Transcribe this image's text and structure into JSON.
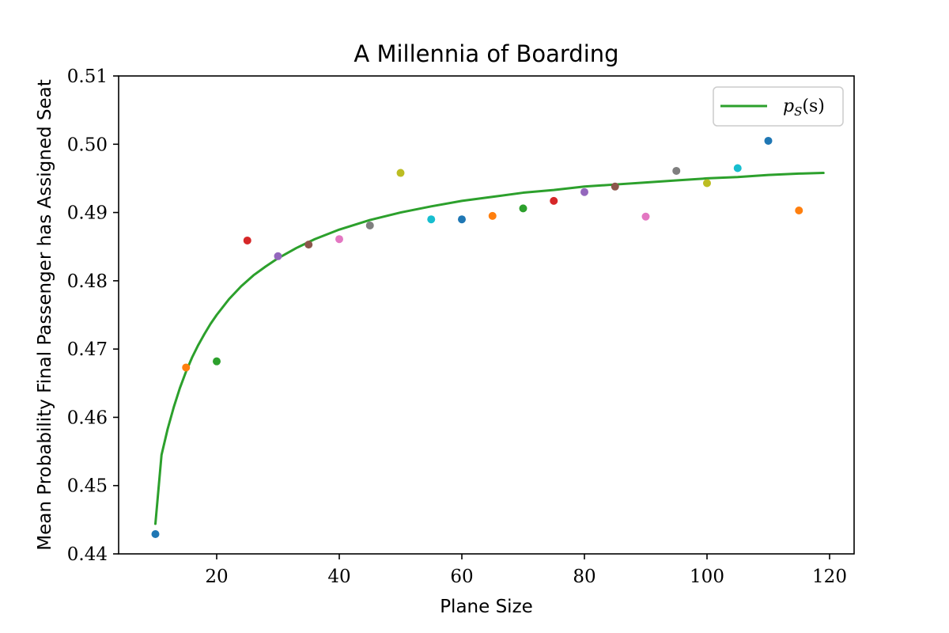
{
  "chart_data": {
    "type": "scatter",
    "title": "A Millennia of Boarding",
    "xlabel": "Plane Size",
    "ylabel": "Mean Probability Final Passenger has Assigned Seat",
    "xlim": [
      4,
      124
    ],
    "ylim": [
      0.44,
      0.51
    ],
    "xticks": [
      20,
      40,
      60,
      80,
      100,
      120
    ],
    "yticks": [
      0.44,
      0.45,
      0.46,
      0.47,
      0.48,
      0.49,
      0.5,
      0.51
    ],
    "ytick_labels": [
      "0.44",
      "0.45",
      "0.46",
      "0.47",
      "0.48",
      "0.49",
      "0.50",
      "0.51"
    ],
    "grid": false,
    "legend": {
      "placement": "top-right",
      "entries": [
        {
          "label_main": "p",
          "label_sub": "S",
          "label_tail": "(s)",
          "color": "#2ca02c"
        }
      ]
    },
    "curve": {
      "name": "p_S(s)",
      "color": "#2ca02c",
      "x": [
        10,
        11,
        12,
        13,
        14,
        15,
        16,
        17,
        18,
        19,
        20,
        22,
        24,
        26,
        28,
        30,
        33,
        36,
        40,
        45,
        50,
        55,
        60,
        65,
        70,
        75,
        80,
        85,
        90,
        95,
        100,
        105,
        110,
        115,
        119
      ],
      "y": [
        0.4444,
        0.4545,
        0.4583,
        0.4615,
        0.4643,
        0.4667,
        0.4688,
        0.4706,
        0.4722,
        0.4737,
        0.475,
        0.4773,
        0.4792,
        0.4808,
        0.4821,
        0.4833,
        0.4848,
        0.4861,
        0.4875,
        0.4889,
        0.49,
        0.4909,
        0.4917,
        0.4923,
        0.4929,
        0.4933,
        0.4938,
        0.4941,
        0.4944,
        0.4947,
        0.495,
        0.4952,
        0.4955,
        0.4957,
        0.4958
      ]
    },
    "points": [
      {
        "x": 10,
        "y": 0.4429,
        "color": "#1f77b4"
      },
      {
        "x": 15,
        "y": 0.4673,
        "color": "#ff7f0e"
      },
      {
        "x": 20,
        "y": 0.4682,
        "color": "#2ca02c"
      },
      {
        "x": 25,
        "y": 0.4859,
        "color": "#d62728"
      },
      {
        "x": 30,
        "y": 0.4836,
        "color": "#9467bd"
      },
      {
        "x": 35,
        "y": 0.4853,
        "color": "#8c564b"
      },
      {
        "x": 40,
        "y": 0.4861,
        "color": "#e377c2"
      },
      {
        "x": 45,
        "y": 0.4881,
        "color": "#7f7f7f"
      },
      {
        "x": 50,
        "y": 0.4958,
        "color": "#bcbd22"
      },
      {
        "x": 55,
        "y": 0.489,
        "color": "#17becf"
      },
      {
        "x": 60,
        "y": 0.489,
        "color": "#1f77b4"
      },
      {
        "x": 65,
        "y": 0.4895,
        "color": "#ff7f0e"
      },
      {
        "x": 70,
        "y": 0.4906,
        "color": "#2ca02c"
      },
      {
        "x": 75,
        "y": 0.4917,
        "color": "#d62728"
      },
      {
        "x": 80,
        "y": 0.493,
        "color": "#9467bd"
      },
      {
        "x": 85,
        "y": 0.4938,
        "color": "#8c564b"
      },
      {
        "x": 90,
        "y": 0.4894,
        "color": "#e377c2"
      },
      {
        "x": 95,
        "y": 0.4961,
        "color": "#7f7f7f"
      },
      {
        "x": 100,
        "y": 0.4943,
        "color": "#bcbd22"
      },
      {
        "x": 105,
        "y": 0.4965,
        "color": "#17becf"
      },
      {
        "x": 110,
        "y": 0.5005,
        "color": "#1f77b4"
      },
      {
        "x": 115,
        "y": 0.4903,
        "color": "#ff7f0e"
      }
    ]
  }
}
